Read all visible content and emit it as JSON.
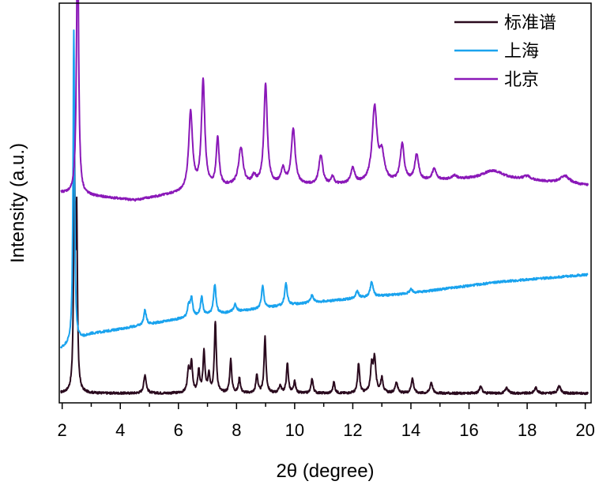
{
  "chart_data": {
    "type": "line",
    "xlabel": "2θ (degree)",
    "ylabel": "Intensity (a.u.)",
    "xlim": [
      1.9,
      20.2
    ],
    "x_ticks": [
      2,
      4,
      6,
      8,
      10,
      12,
      14,
      16,
      18,
      20
    ],
    "x_tick_labels": [
      "2",
      "4",
      "6",
      "8",
      "10",
      "12",
      "14",
      "16",
      "18",
      "20"
    ],
    "y_ticks_shown": false,
    "grid": false,
    "legend_position": "top-right",
    "series": [
      {
        "name": "标准谱",
        "color": "#2a0a1e",
        "baseline": [
          [
            1.95,
            0.0
          ],
          [
            20.1,
            0.0
          ]
        ],
        "peaks": [
          [
            2.42,
            0.62,
            0.03
          ],
          [
            2.5,
            0.45,
            0.03
          ],
          [
            4.85,
            0.05,
            0.05
          ],
          [
            6.35,
            0.06,
            0.05
          ],
          [
            6.45,
            0.08,
            0.04
          ],
          [
            6.7,
            0.06,
            0.04
          ],
          [
            6.88,
            0.11,
            0.04
          ],
          [
            7.05,
            0.05,
            0.04
          ],
          [
            7.27,
            0.19,
            0.04
          ],
          [
            7.8,
            0.09,
            0.04
          ],
          [
            8.1,
            0.04,
            0.04
          ],
          [
            8.7,
            0.05,
            0.04
          ],
          [
            8.98,
            0.15,
            0.04
          ],
          [
            9.5,
            0.02,
            0.05
          ],
          [
            9.75,
            0.08,
            0.04
          ],
          [
            10.0,
            0.03,
            0.04
          ],
          [
            10.6,
            0.04,
            0.04
          ],
          [
            11.35,
            0.03,
            0.04
          ],
          [
            12.2,
            0.08,
            0.04
          ],
          [
            12.65,
            0.07,
            0.05
          ],
          [
            12.75,
            0.09,
            0.05
          ],
          [
            13.0,
            0.04,
            0.05
          ],
          [
            13.5,
            0.03,
            0.05
          ],
          [
            14.05,
            0.04,
            0.05
          ],
          [
            14.7,
            0.03,
            0.05
          ],
          [
            16.4,
            0.02,
            0.05
          ],
          [
            17.3,
            0.015,
            0.06
          ],
          [
            18.3,
            0.015,
            0.06
          ],
          [
            19.1,
            0.02,
            0.06
          ]
        ]
      },
      {
        "name": "上海",
        "color": "#1aa3ee",
        "baseline": [
          [
            1.95,
            0.12
          ],
          [
            3.0,
            0.16
          ],
          [
            6.0,
            0.2
          ],
          [
            10.0,
            0.24
          ],
          [
            14.0,
            0.27
          ],
          [
            17.0,
            0.3
          ],
          [
            20.1,
            0.32
          ]
        ],
        "peaks": [
          [
            2.4,
            0.84,
            0.03
          ],
          [
            4.85,
            0.04,
            0.05
          ],
          [
            6.35,
            0.03,
            0.05
          ],
          [
            6.45,
            0.05,
            0.05
          ],
          [
            6.8,
            0.05,
            0.05
          ],
          [
            7.25,
            0.08,
            0.05
          ],
          [
            7.95,
            0.02,
            0.06
          ],
          [
            8.9,
            0.06,
            0.05
          ],
          [
            9.7,
            0.06,
            0.05
          ],
          [
            10.6,
            0.02,
            0.06
          ],
          [
            12.15,
            0.02,
            0.06
          ],
          [
            12.65,
            0.04,
            0.06
          ],
          [
            14.0,
            0.01,
            0.06
          ]
        ]
      },
      {
        "name": "北京",
        "color": "#8a18b8",
        "baseline": [
          [
            1.95,
            0.54
          ],
          [
            4.5,
            0.52
          ],
          [
            6.1,
            0.54
          ],
          [
            8.0,
            0.56
          ],
          [
            11.0,
            0.56
          ],
          [
            14.0,
            0.57
          ],
          [
            17.0,
            0.58
          ],
          [
            20.1,
            0.56
          ]
        ],
        "peaks": [
          [
            2.53,
            0.76,
            0.04
          ],
          [
            6.42,
            0.21,
            0.08
          ],
          [
            6.85,
            0.29,
            0.07
          ],
          [
            7.35,
            0.13,
            0.06
          ],
          [
            8.15,
            0.1,
            0.09
          ],
          [
            8.6,
            0.02,
            0.08
          ],
          [
            9.0,
            0.27,
            0.07
          ],
          [
            9.6,
            0.04,
            0.08
          ],
          [
            9.95,
            0.15,
            0.08
          ],
          [
            10.9,
            0.08,
            0.08
          ],
          [
            11.3,
            0.02,
            0.06
          ],
          [
            12.0,
            0.04,
            0.08
          ],
          [
            12.75,
            0.2,
            0.1
          ],
          [
            13.0,
            0.07,
            0.1
          ],
          [
            13.7,
            0.1,
            0.08
          ],
          [
            14.2,
            0.07,
            0.08
          ],
          [
            14.8,
            0.03,
            0.08
          ],
          [
            15.5,
            0.01,
            0.1
          ],
          [
            16.8,
            0.02,
            0.4
          ],
          [
            18.0,
            0.01,
            0.15
          ],
          [
            19.3,
            0.02,
            0.2
          ]
        ]
      }
    ]
  }
}
